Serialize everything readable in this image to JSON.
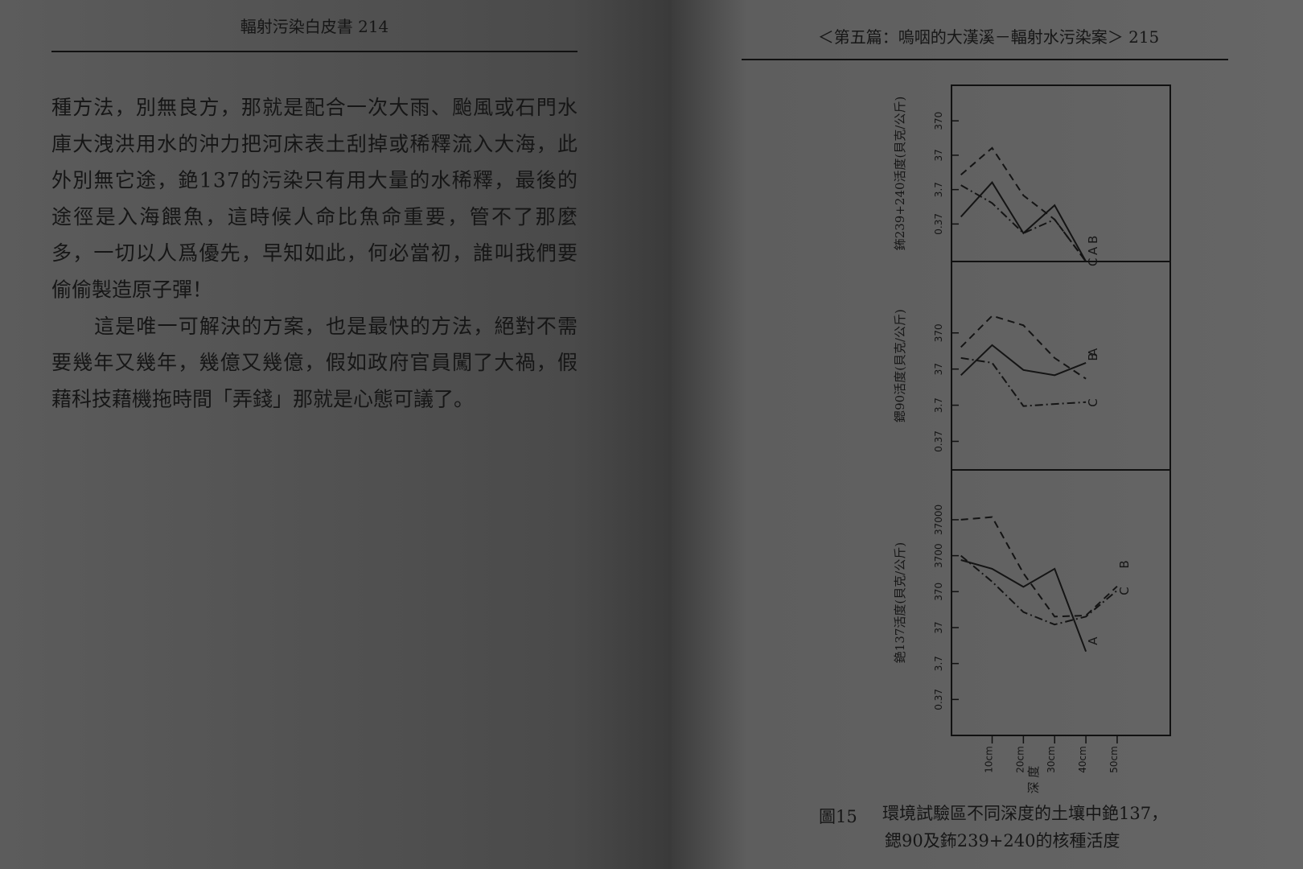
{
  "left_page": {
    "header": "輻射污染白皮書 214",
    "paragraphs": [
      {
        "lines": [
          "種方法，別無良方，那就是配合一次大雨、颱風或石門水",
          "庫大洩洪用水的沖力把河床表土刮掉或稀釋流入大海，此",
          "外別無它途，銫137的污染只有用大量的水稀釋，最後的",
          "途徑是入海餵魚，這時候人命比魚命重要，管不了那麼",
          "多，一切以人爲優先，早知如此，何必當初，誰叫我們要",
          "偷偷製造原子彈！"
        ]
      },
      {
        "lines": [
          "這是唯一可解決的方案，也是最快的方法，絕對不需",
          "要幾年又幾年，幾億又幾億，假如政府官員闖了大禍，假",
          "藉科技藉機拖時間「弄錢」那就是心態可議了。"
        ]
      }
    ]
  },
  "right_page": {
    "header": "＜第五篇：嗚咽的大漢溪－輻射水污染案＞ 215",
    "caption_label": "圖15",
    "caption_lines": [
      "環境試驗區不同深度的土壤中銫137，",
      "鍶90及鈽239+240的核種活度"
    ]
  },
  "chart_data": [
    {
      "type": "line",
      "y_label": "鈽239+240活度(貝克/公斤)",
      "log_scale": true,
      "x": [
        0,
        10,
        20,
        30,
        40
      ],
      "xlim": [
        -3,
        67
      ],
      "ylim": [
        0.03,
        4000
      ],
      "yticks": [
        0.37,
        3.7,
        37,
        370
      ],
      "series": [
        {
          "name": "A",
          "color": "#141414",
          "line_style": "solid",
          "values": [
            0.6,
            6,
            0.2,
            1.3,
            0.03
          ]
        },
        {
          "name": "B",
          "color": "#141414",
          "line_style": "dashed",
          "values": [
            10,
            60,
            2.5,
            0.5,
            0.03
          ]
        },
        {
          "name": "C",
          "color": "#141414",
          "line_style": "dashdot",
          "values": [
            5,
            1.5,
            0.2,
            0.5,
            0.03
          ]
        }
      ]
    },
    {
      "type": "line",
      "y_label": "鍶90活度(貝克/公斤)",
      "log_scale": true,
      "x": [
        0,
        10,
        20,
        30,
        40
      ],
      "xlim": [
        -3,
        67
      ],
      "ylim": [
        0.06,
        35000
      ],
      "yticks": [
        0.37,
        3.7,
        37,
        370
      ],
      "series": [
        {
          "name": "A",
          "color": "#141414",
          "line_style": "solid",
          "values": [
            25,
            170,
            35,
            25,
            55
          ]
        },
        {
          "name": "B",
          "color": "#141414",
          "line_style": "dashed",
          "values": [
            150,
            1100,
            600,
            75,
            20
          ]
        },
        {
          "name": "C",
          "color": "#141414",
          "line_style": "dashdot",
          "values": [
            75,
            55,
            3.5,
            4,
            4.5
          ]
        }
      ]
    },
    {
      "type": "line",
      "y_label": "銫137活度(貝克/公斤)",
      "x_label": "深 度",
      "log_scale": true,
      "x": [
        0,
        10,
        20,
        30,
        40,
        50
      ],
      "xlim": [
        -3,
        67
      ],
      "xticks": [
        {
          "value": 10,
          "label": "10cm"
        },
        {
          "value": 20,
          "label": "20cm"
        },
        {
          "value": 30,
          "label": "30cm"
        },
        {
          "value": 40,
          "label": "40cm"
        },
        {
          "value": 50,
          "label": "50cm"
        }
      ],
      "ylim": [
        0.037,
        900000
      ],
      "yticks": [
        0.37,
        3.7,
        37,
        370,
        3700,
        37000
      ],
      "series": [
        {
          "name": "A",
          "color": "#141414",
          "line_style": "solid",
          "values": [
            2800,
            1600,
            500,
            1600,
            8,
            null
          ]
        },
        {
          "name": "B",
          "color": "#141414",
          "line_style": "dashed",
          "values": [
            37000,
            44000,
            1200,
            75,
            80,
            520
          ]
        },
        {
          "name": "C",
          "color": "#141414",
          "line_style": "dashdot",
          "values": [
            3700,
            700,
            100,
            45,
            75,
            400
          ]
        }
      ]
    }
  ]
}
